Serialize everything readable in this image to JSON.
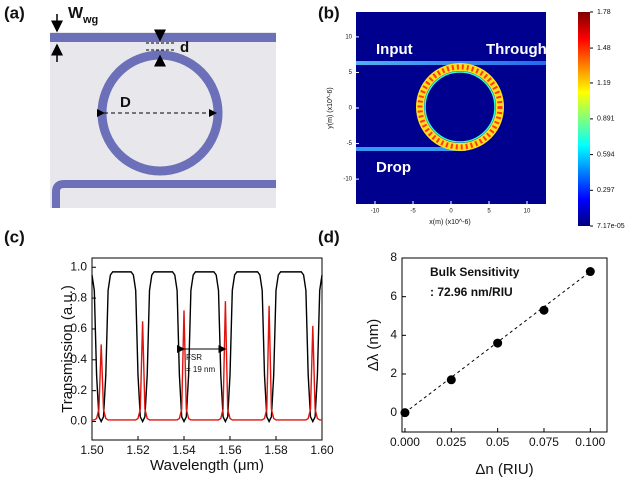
{
  "panel_labels": [
    "(a)",
    "(b)",
    "(c)",
    "(d)"
  ],
  "diagram": {
    "w": "W",
    "w_sub": "wg",
    "gap": "d",
    "diameter": "D"
  },
  "field_map": {
    "labels": [
      "Input",
      "Through",
      "Drop"
    ],
    "x_label": "x(m) (x10^-6)",
    "y_label": "y(m) (x10^-6)",
    "xlim": [
      -12.5,
      12.5
    ],
    "ylim": [
      -13.5,
      13.5
    ],
    "xticks": [
      -10,
      -5,
      0,
      5,
      10
    ],
    "yticks": [
      10,
      5,
      0,
      -5,
      -10
    ],
    "colorbar_lim": [
      7.17e-05,
      1.78
    ],
    "colorbar_ticks": [
      1.78,
      1.48,
      1.19,
      0.891,
      0.594,
      0.297,
      {
        "value": 7.17e-05,
        "label": "7.17e-05"
      }
    ]
  },
  "chart_data": [
    {
      "type": "line",
      "y_label": "Transmission (a.u.)",
      "x_label": "Wavelength (μm)",
      "annotations": [
        "FSR",
        "= 19 nm"
      ],
      "xlim": [
        1.5,
        1.6
      ],
      "ylim": [
        -0.12,
        1.06
      ],
      "xticks": [
        {
          "value": 1.5,
          "label": "1.50"
        },
        {
          "value": 1.52,
          "label": "1.52"
        },
        {
          "value": 1.54,
          "label": "1.54"
        },
        {
          "value": 1.56,
          "label": "1.56"
        },
        {
          "value": 1.58,
          "label": "1.58"
        },
        {
          "value": 1.6,
          "label": "1.60"
        }
      ],
      "yticks": [
        {
          "value": 0,
          "label": "0.0"
        },
        {
          "value": 0.2,
          "label": "0.2"
        },
        {
          "value": 0.4,
          "label": "0.4"
        },
        {
          "value": 0.6,
          "label": "0.6"
        },
        {
          "value": 0.8,
          "label": "0.8"
        },
        {
          "value": 1,
          "label": "1.0"
        }
      ],
      "x": [
        1.5,
        1.501,
        1.502,
        1.503,
        1.504,
        1.505,
        1.506,
        1.507,
        1.508,
        1.509,
        1.51,
        1.511,
        1.512,
        1.513,
        1.514,
        1.515,
        1.516,
        1.517,
        1.518,
        1.519,
        1.52,
        1.521,
        1.522,
        1.523,
        1.524,
        1.525,
        1.526,
        1.527,
        1.528,
        1.529,
        1.53,
        1.531,
        1.532,
        1.533,
        1.534,
        1.535,
        1.536,
        1.537,
        1.538,
        1.539,
        1.54,
        1.541,
        1.542,
        1.543,
        1.544,
        1.545,
        1.546,
        1.547,
        1.548,
        1.549,
        1.55,
        1.551,
        1.552,
        1.553,
        1.554,
        1.555,
        1.556,
        1.557,
        1.558,
        1.559,
        1.56,
        1.561,
        1.562,
        1.563,
        1.564,
        1.565,
        1.566,
        1.567,
        1.568,
        1.569,
        1.57,
        1.571,
        1.572,
        1.573,
        1.574,
        1.575,
        1.576,
        1.577,
        1.578,
        1.579,
        1.58,
        1.581,
        1.582,
        1.583,
        1.584,
        1.585,
        1.586,
        1.587,
        1.588,
        1.589,
        1.59,
        1.591,
        1.592,
        1.593,
        1.594,
        1.595,
        1.596,
        1.597,
        1.598,
        1.599,
        1.6
      ],
      "series": [
        {
          "color": "#000000",
          "values": [
            0.95,
            0.85,
            0.3,
            0.03,
            0,
            0.03,
            0.3,
            0.85,
            0.95,
            0.97,
            0.97,
            0.97,
            0.97,
            0.97,
            0.97,
            0.97,
            0.97,
            0.97,
            0.95,
            0.85,
            0.3,
            0.03,
            0,
            0.03,
            0.3,
            0.85,
            0.95,
            0.97,
            0.97,
            0.97,
            0.97,
            0.97,
            0.97,
            0.97,
            0.97,
            0.97,
            0.95,
            0.85,
            0.3,
            0.03,
            0,
            0.03,
            0.3,
            0.85,
            0.95,
            0.97,
            0.97,
            0.97,
            0.97,
            0.97,
            0.97,
            0.97,
            0.97,
            0.97,
            0.95,
            0.85,
            0.3,
            0.03,
            0,
            0.03,
            0.3,
            0.85,
            0.95,
            0.97,
            0.97,
            0.97,
            0.97,
            0.97,
            0.97,
            0.97,
            0.97,
            0.97,
            0.97,
            0.95,
            0.85,
            0.3,
            0.03,
            0,
            0.03,
            0.3,
            0.85,
            0.95,
            0.97,
            0.97,
            0.97,
            0.97,
            0.97,
            0.97,
            0.97,
            0.97,
            0.97,
            0.97,
            0.95,
            0.85,
            0.3,
            0.03,
            0,
            0.03,
            0.3,
            0.85,
            0.95
          ]
        },
        {
          "color": "#e0140f",
          "values": [
            0.01,
            0.01,
            0.02,
            0.08,
            0.5,
            0.08,
            0.02,
            0.01,
            0.01,
            0.01,
            0.01,
            0.01,
            0.01,
            0.01,
            0.01,
            0.01,
            0.01,
            0.01,
            0.01,
            0.01,
            0.02,
            0.08,
            0.65,
            0.08,
            0.02,
            0.01,
            0.01,
            0.01,
            0.01,
            0.01,
            0.01,
            0.01,
            0.01,
            0.01,
            0.01,
            0.01,
            0.01,
            0.01,
            0.02,
            0.08,
            0.72,
            0.08,
            0.02,
            0.01,
            0.01,
            0.01,
            0.01,
            0.01,
            0.01,
            0.01,
            0.01,
            0.01,
            0.01,
            0.01,
            0.01,
            0.01,
            0.02,
            0.08,
            0.78,
            0.08,
            0.02,
            0.01,
            0.01,
            0.01,
            0.01,
            0.01,
            0.01,
            0.01,
            0.01,
            0.01,
            0.01,
            0.01,
            0.01,
            0.01,
            0.01,
            0.02,
            0.08,
            0.75,
            0.08,
            0.02,
            0.01,
            0.01,
            0.01,
            0.01,
            0.01,
            0.01,
            0.01,
            0.01,
            0.01,
            0.01,
            0.01,
            0.01,
            0.01,
            0.01,
            0.02,
            0.08,
            0.62,
            0.08,
            0.02,
            0.01,
            0.01
          ]
        }
      ]
    },
    {
      "type": "scatter",
      "y_label": "Δλ (nm)",
      "x_label": "Δn (RIU)",
      "annotations": [
        "Bulk Sensitivity",
        ": 72.96 nm/RIU"
      ],
      "xlim": [
        -0.0016,
        0.109
      ],
      "ylim": [
        -1,
        8
      ],
      "xticks": [
        {
          "value": 0,
          "label": "0.000"
        },
        0.025,
        0.05,
        0.075,
        {
          "value": 0.1,
          "label": "0.100"
        }
      ],
      "yticks": [
        0,
        2,
        4,
        6,
        8
      ],
      "x": [
        0,
        0.025,
        0.05,
        0.075,
        0.1
      ],
      "color": "#000000",
      "values": [
        0,
        1.7,
        3.6,
        5.3,
        7.3
      ]
    }
  ]
}
